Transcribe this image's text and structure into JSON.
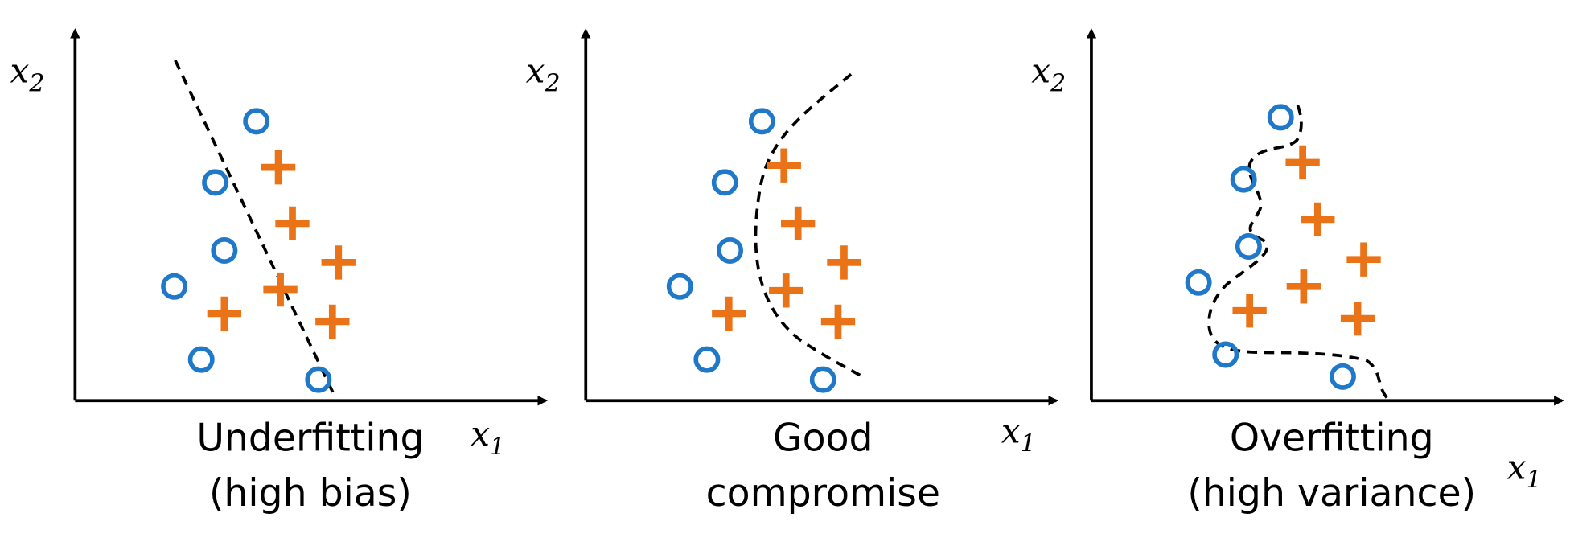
{
  "panels": [
    {
      "caption": [
        "Underfitting",
        "(high bias)"
      ],
      "x_axis": {
        "symbol": "x",
        "subscript": "1"
      },
      "y_axis": {
        "symbol": "x",
        "subscript": "2"
      }
    },
    {
      "caption": [
        "Good",
        "compromise"
      ],
      "x_axis": {
        "symbol": "x",
        "subscript": "1"
      },
      "y_axis": {
        "symbol": "x",
        "subscript": "2"
      }
    },
    {
      "caption": [
        "Overfitting",
        "(high variance)"
      ],
      "x_axis": {
        "symbol": "x",
        "subscript": "1"
      },
      "y_axis": {
        "symbol": "x",
        "subscript": "2"
      }
    }
  ]
}
